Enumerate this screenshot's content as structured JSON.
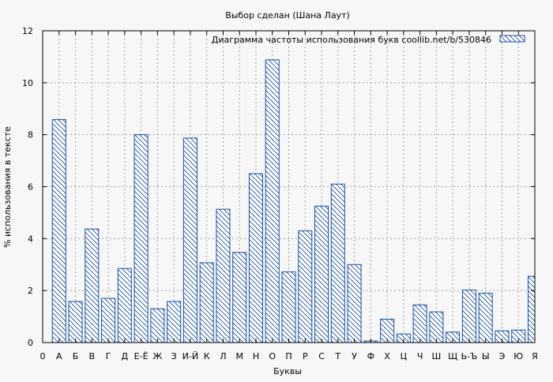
{
  "chart_data": {
    "type": "bar",
    "title": "Выбор сделан (Шана Лаут)",
    "xlabel": "Буквы",
    "ylabel": "% использования в тексте",
    "legend": {
      "label": "Диаграмма частоты использования букв  coollib.net/b/530846",
      "position": "top-right"
    },
    "ylim": [
      0,
      12
    ],
    "yticks": [
      0,
      2,
      4,
      6,
      8,
      10,
      12
    ],
    "grid": true,
    "bar_color": "#1a4fa0",
    "x_tick_labels": [
      "0",
      "А",
      "Б",
      "В",
      "Г",
      "Д",
      "Е-Ё",
      "Ж",
      "З",
      "И-Й",
      "К",
      "Л",
      "М",
      "Н",
      "О",
      "П",
      "Р",
      "С",
      "Т",
      "У",
      "Ф",
      "Х",
      "Ц",
      "Ч",
      "Ш",
      "Щ",
      "Ь-Ъ",
      "Ы",
      "Э",
      "Ю",
      "Я"
    ],
    "categories": [
      "А",
      "Б",
      "В",
      "Г",
      "Д",
      "Е-Ё",
      "Ж",
      "З",
      "И-Й",
      "К",
      "Л",
      "М",
      "Н",
      "О",
      "П",
      "Р",
      "С",
      "Т",
      "У",
      "Ф",
      "Х",
      "Ц",
      "Ч",
      "Ш",
      "Щ",
      "Ь-Ъ",
      "Ы",
      "Э",
      "Ю",
      "Я"
    ],
    "values": [
      8.58,
      1.58,
      4.37,
      1.7,
      2.85,
      8.0,
      1.3,
      1.58,
      7.87,
      3.07,
      5.13,
      3.47,
      6.5,
      10.88,
      2.72,
      4.3,
      5.25,
      6.1,
      3.0,
      0.06,
      0.9,
      0.33,
      1.45,
      1.18,
      0.4,
      2.02,
      1.9,
      0.45,
      0.48,
      2.55
    ]
  }
}
